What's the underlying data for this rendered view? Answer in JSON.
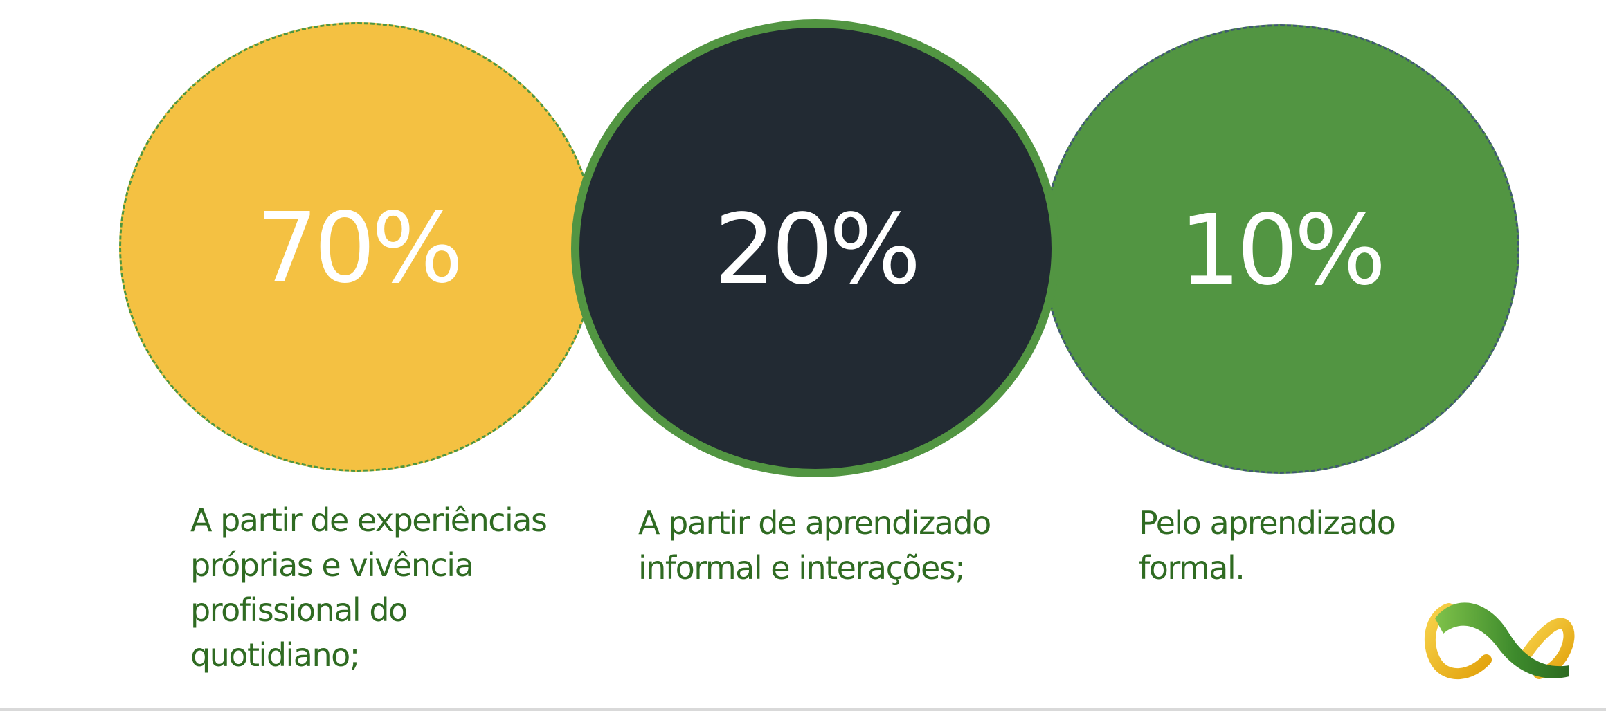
{
  "segments": [
    {
      "percent": "70%",
      "caption": "A partir de experiências\npróprias e vivência\nprofissional do\nquotidiano;",
      "color": "#f4c142"
    },
    {
      "percent": "20%",
      "caption": "A partir de aprendizado\ninformal e interações;",
      "color": "#222a33"
    },
    {
      "percent": "10%",
      "caption": "Pelo aprendizado\nformal.",
      "color": "#529542"
    }
  ],
  "colors": {
    "text_green": "#2f6b22",
    "accent_green": "#529542",
    "accent_yellow": "#f4c142"
  },
  "logo": {
    "icon": "infinity-logo-icon"
  }
}
